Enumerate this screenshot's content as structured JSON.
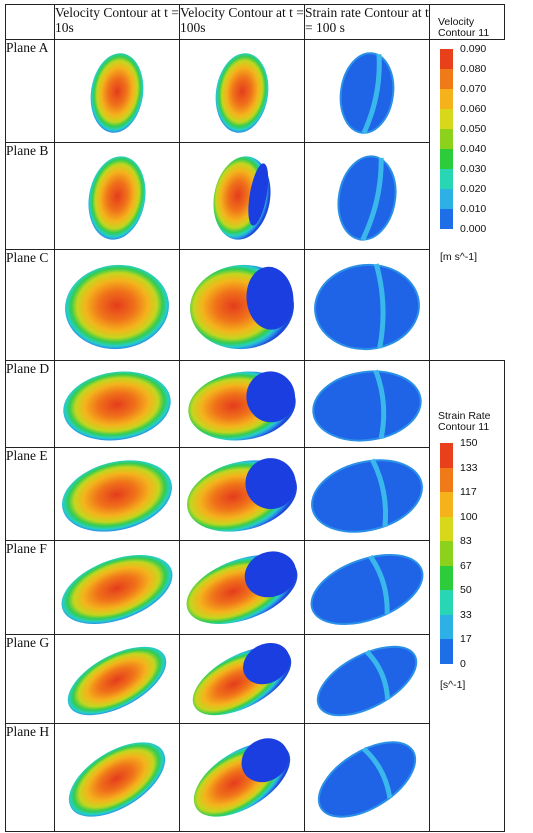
{
  "headers": {
    "col1": "Velocity Contour at t = 10s",
    "col2": "Velocity Contour at t = 100s",
    "col3": "Strain rate Contour at t = 100 s"
  },
  "planes": [
    "Plane A",
    "Plane B",
    "Plane C",
    "Plane D",
    "Plane E",
    "Plane F",
    "Plane G",
    "Plane H"
  ],
  "velocity_legend": {
    "title_line1": "Velocity",
    "title_line2": "Contour 11",
    "unit": "[m s^-1]",
    "ticks": [
      "0.090",
      "0.080",
      "0.070",
      "0.060",
      "0.050",
      "0.040",
      "0.030",
      "0.020",
      "0.010",
      "0.000"
    ],
    "colors": [
      "#e8401a",
      "#f07a18",
      "#f6b21a",
      "#d8d81a",
      "#8cd21c",
      "#2ccc3a",
      "#28d6b4",
      "#2cb0e6",
      "#1e6ee8",
      "#1440d8"
    ]
  },
  "strain_legend": {
    "title_line1": "Strain Rate",
    "title_line2": "Contour 11",
    "unit": "[s^-1]",
    "ticks": [
      "150",
      "133",
      "117",
      "100",
      "83",
      "67",
      "50",
      "33",
      "17",
      "0"
    ],
    "colors": [
      "#e8401a",
      "#f07a18",
      "#f6b21a",
      "#d8d81a",
      "#8cd21c",
      "#2ccc3a",
      "#28d6b4",
      "#2cb0e6",
      "#1e6ee8",
      "#1440d8"
    ]
  }
}
